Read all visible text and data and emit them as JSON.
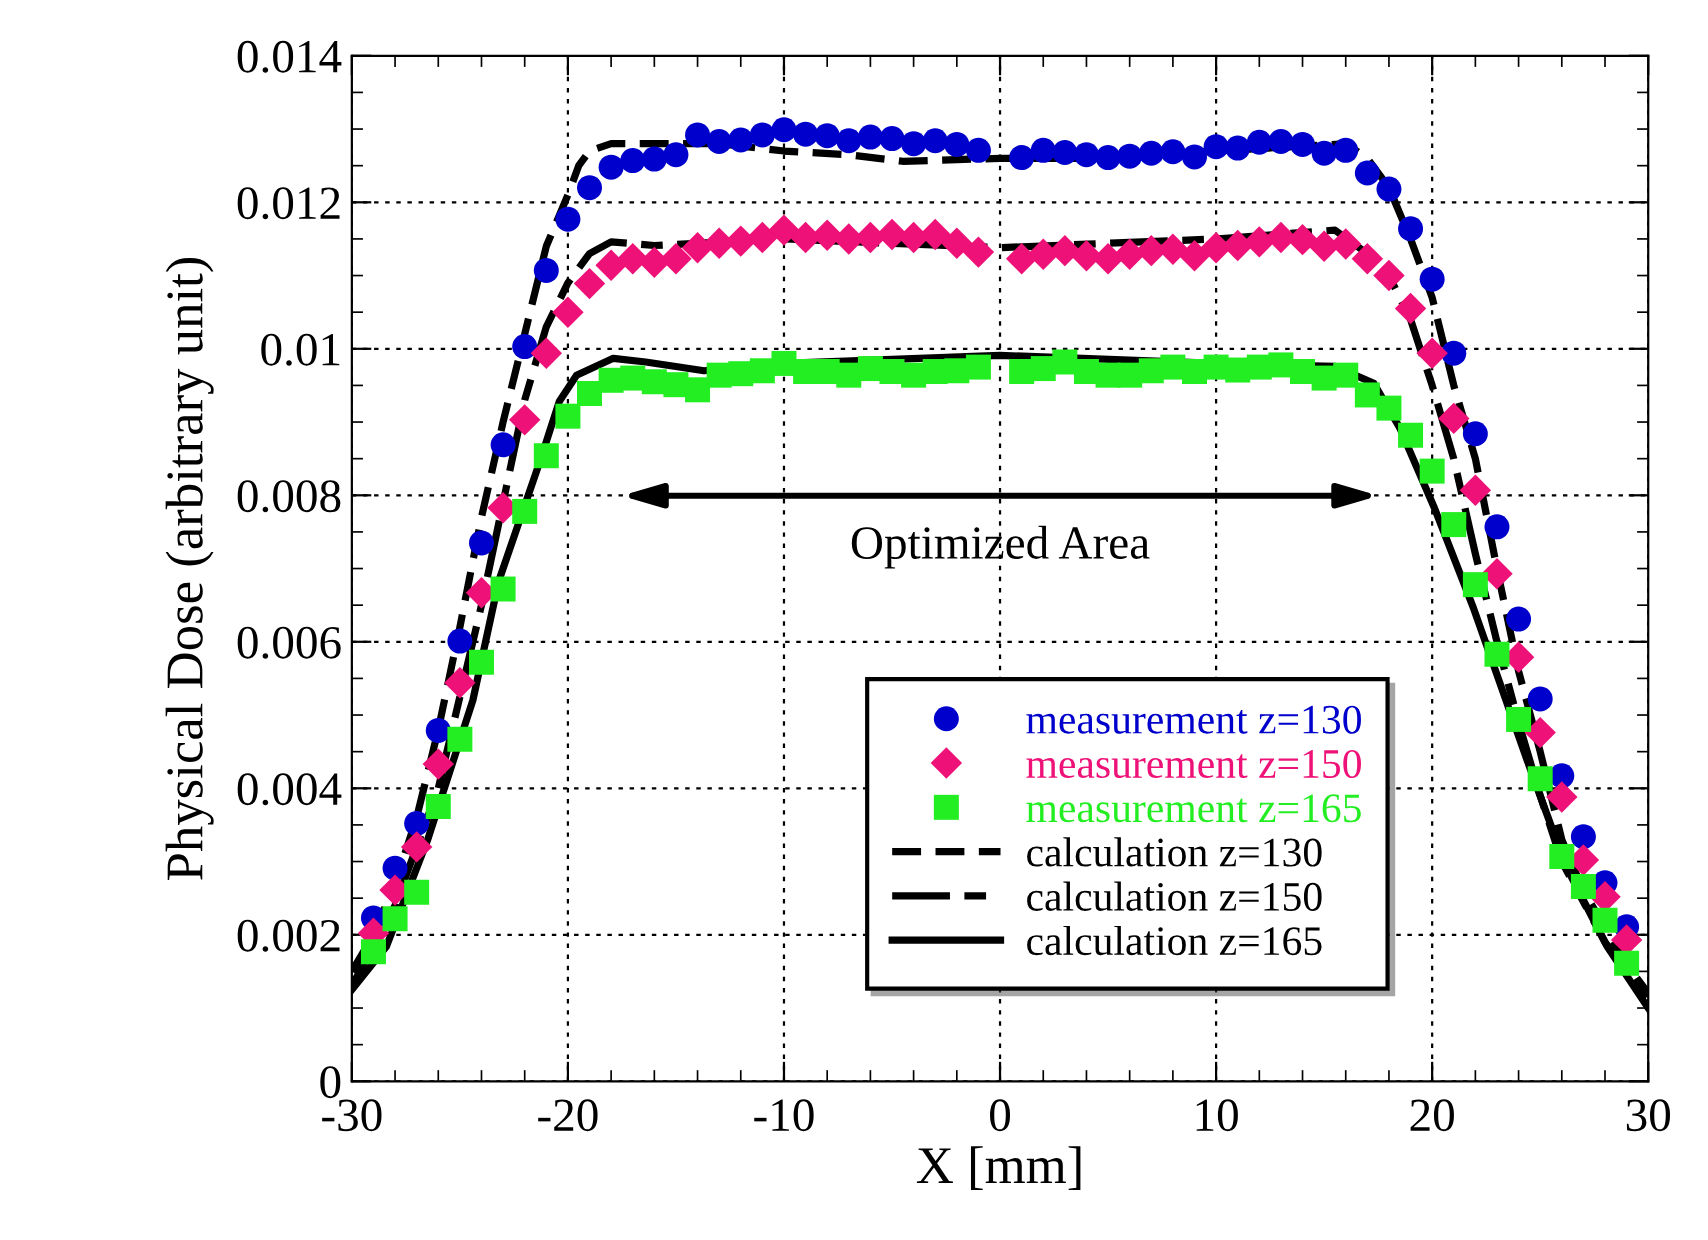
{
  "chart_data": {
    "type": "scatter",
    "xlabel": "X [mm]",
    "ylabel": "Physical Dose (arbitrary unit)",
    "xlim": [
      -30,
      30
    ],
    "xticks": [
      -30,
      -20,
      -10,
      0,
      10,
      20,
      30
    ],
    "ylim": [
      0,
      0.014
    ],
    "yticks": [
      0,
      0.002,
      0.004,
      0.006,
      0.008,
      0.01,
      0.012,
      0.014
    ],
    "grid": true,
    "legend": "bottom right",
    "annotations": [
      "Optimized Area"
    ],
    "series": [
      {
        "name": "measurement z=130",
        "marker": "circle",
        "color": "#0000cc",
        "x": [
          -29,
          -28,
          -27,
          -26,
          -25,
          -24,
          -23,
          -22,
          -21,
          -20,
          -19,
          -18,
          -17,
          -16,
          -15,
          -14,
          -13,
          -12,
          -11,
          -10,
          -9,
          -8,
          -7,
          -6,
          -5,
          -4,
          -3,
          -2,
          -1,
          1,
          2,
          3,
          4,
          5,
          6,
          7,
          8,
          9,
          10,
          11,
          12,
          13,
          14,
          15,
          16,
          17,
          18,
          19,
          20,
          21,
          22,
          23,
          24,
          25,
          26,
          27,
          28,
          29
        ],
        "values": [
          0.00223,
          0.00291,
          0.00352,
          0.00479,
          0.00601,
          0.00735,
          0.00869,
          0.01003,
          0.01107,
          0.01177,
          0.0122,
          0.01248,
          0.01257,
          0.01259,
          0.01265,
          0.01292,
          0.01283,
          0.01285,
          0.01292,
          0.01299,
          0.01293,
          0.01291,
          0.01284,
          0.01289,
          0.01287,
          0.0128,
          0.01284,
          0.01279,
          0.01271,
          0.01261,
          0.01271,
          0.01268,
          0.01265,
          0.01261,
          0.01263,
          0.01267,
          0.01269,
          0.01262,
          0.01276,
          0.01274,
          0.01282,
          0.01283,
          0.01279,
          0.01267,
          0.01271,
          0.0124,
          0.01218,
          0.01164,
          0.01095,
          0.00994,
          0.00884,
          0.00757,
          0.00631,
          0.00522,
          0.00417,
          0.00334,
          0.00271,
          0.00211
        ]
      },
      {
        "name": "measurement z=150",
        "marker": "diamond",
        "color": "#ee1177",
        "x": [
          -29,
          -28,
          -27,
          -26,
          -25,
          -24,
          -23,
          -22,
          -21,
          -20,
          -19,
          -18,
          -17,
          -16,
          -15,
          -14,
          -13,
          -12,
          -11,
          -10,
          -9,
          -8,
          -7,
          -6,
          -5,
          -4,
          -3,
          -2,
          -1,
          1,
          2,
          3,
          4,
          5,
          6,
          7,
          8,
          9,
          10,
          11,
          12,
          13,
          14,
          15,
          16,
          17,
          18,
          19,
          20,
          21,
          22,
          23,
          24,
          25,
          26,
          27,
          28,
          29
        ],
        "values": [
          0.00202,
          0.00261,
          0.0032,
          0.00433,
          0.00544,
          0.00667,
          0.00783,
          0.00903,
          0.00994,
          0.0105,
          0.01089,
          0.01114,
          0.01123,
          0.01118,
          0.01123,
          0.01138,
          0.01144,
          0.01147,
          0.01152,
          0.01162,
          0.01152,
          0.01155,
          0.0115,
          0.01152,
          0.01156,
          0.01152,
          0.01156,
          0.01144,
          0.01132,
          0.01123,
          0.01129,
          0.01134,
          0.01127,
          0.01123,
          0.01129,
          0.01134,
          0.01136,
          0.01127,
          0.01138,
          0.01141,
          0.01146,
          0.01152,
          0.01149,
          0.0114,
          0.01143,
          0.01123,
          0.011,
          0.01055,
          0.00994,
          0.00905,
          0.00807,
          0.00693,
          0.00579,
          0.00476,
          0.00388,
          0.00302,
          0.00252,
          0.00193
        ]
      },
      {
        "name": "measurement z=165",
        "marker": "square",
        "color": "#22ee22",
        "x": [
          -29,
          -28,
          -27,
          -26,
          -25,
          -24,
          -23,
          -22,
          -21,
          -20,
          -19,
          -18,
          -17,
          -16,
          -15,
          -14,
          -13,
          -12,
          -11,
          -10,
          -9,
          -8,
          -7,
          -6,
          -5,
          -4,
          -3,
          -2,
          -1,
          1,
          2,
          3,
          4,
          5,
          6,
          7,
          8,
          9,
          10,
          11,
          12,
          13,
          14,
          15,
          16,
          17,
          18,
          19,
          20,
          21,
          22,
          23,
          24,
          25,
          26,
          27,
          28,
          29
        ],
        "values": [
          0.00177,
          0.00222,
          0.00258,
          0.00375,
          0.00467,
          0.00572,
          0.00672,
          0.00778,
          0.00854,
          0.00908,
          0.00939,
          0.00957,
          0.0096,
          0.00955,
          0.00951,
          0.00944,
          0.00964,
          0.00966,
          0.0097,
          0.0098,
          0.00969,
          0.00969,
          0.00964,
          0.00973,
          0.00969,
          0.00964,
          0.00969,
          0.0097,
          0.00975,
          0.00969,
          0.00973,
          0.00982,
          0.00969,
          0.00964,
          0.00964,
          0.0097,
          0.00975,
          0.00969,
          0.00975,
          0.00971,
          0.00975,
          0.00978,
          0.00969,
          0.0096,
          0.00964,
          0.00937,
          0.00919,
          0.00882,
          0.00833,
          0.0076,
          0.00678,
          0.00583,
          0.00494,
          0.00413,
          0.00307,
          0.00266,
          0.0022,
          0.00161
        ]
      },
      {
        "name": "calculation z=130",
        "type": "line",
        "line_style": "dashed",
        "color": "#000000",
        "x": [
          -30,
          -29,
          -28,
          -27,
          -26,
          -25,
          -24,
          -23,
          -22,
          -21,
          -20,
          -19.5,
          -19,
          -18,
          -16,
          -13,
          -10,
          -7,
          -4.5,
          0,
          4,
          10,
          16,
          17,
          18,
          19,
          20,
          21,
          22,
          23,
          24,
          25,
          26,
          27,
          28,
          29,
          30
        ],
        "values": [
          0.0015,
          0.002,
          0.0027,
          0.0036,
          0.0048,
          0.0062,
          0.0077,
          0.009,
          0.0102,
          0.0114,
          0.0121,
          0.0125,
          0.0127,
          0.0128,
          0.0128,
          0.0128,
          0.0127,
          0.01265,
          0.01256,
          0.0126,
          0.0126,
          0.0127,
          0.0128,
          0.0126,
          0.0122,
          0.0115,
          0.0107,
          0.0095,
          0.0085,
          0.007,
          0.0056,
          0.0045,
          0.0033,
          0.0026,
          0.0021,
          0.0016,
          0.0012
        ]
      },
      {
        "name": "calculation z=150",
        "type": "line",
        "line_style": "dashdot",
        "color": "#000000",
        "x": [
          -30,
          -28,
          -26,
          -24,
          -22,
          -21,
          -20,
          -19,
          -18,
          -16,
          -10,
          0,
          10,
          15.5,
          17,
          18,
          19,
          20,
          21,
          22,
          23,
          24,
          25,
          26,
          28,
          30
        ],
        "values": [
          0.0013,
          0.0024,
          0.004,
          0.0065,
          0.0093,
          0.0103,
          0.0109,
          0.0113,
          0.01146,
          0.01141,
          0.0115,
          0.01138,
          0.0115,
          0.01162,
          0.0113,
          0.011,
          0.0104,
          0.0095,
          0.0085,
          0.0072,
          0.006,
          0.0049,
          0.0039,
          0.003,
          0.0019,
          0.0011
        ]
      },
      {
        "name": "calculation z=165",
        "type": "line",
        "line_style": "solid",
        "color": "#000000",
        "x": [
          -30,
          -28.4,
          -26.5,
          -24.4,
          -23.2,
          -21.3,
          -20.4,
          -19.6,
          -17.9,
          -16.4,
          -13.7,
          -10,
          0,
          10,
          15.5,
          17.3,
          18.5,
          20.1,
          21.9,
          24.4,
          26.2,
          28.1,
          30
        ],
        "values": [
          0.00125,
          0.00184,
          0.00329,
          0.0052,
          0.00683,
          0.00846,
          0.00928,
          0.00964,
          0.00987,
          0.00982,
          0.0097,
          0.0098,
          0.00991,
          0.0098,
          0.00976,
          0.00953,
          0.00892,
          0.00783,
          0.00647,
          0.00438,
          0.00293,
          0.00184,
          0.001
        ]
      }
    ]
  }
}
